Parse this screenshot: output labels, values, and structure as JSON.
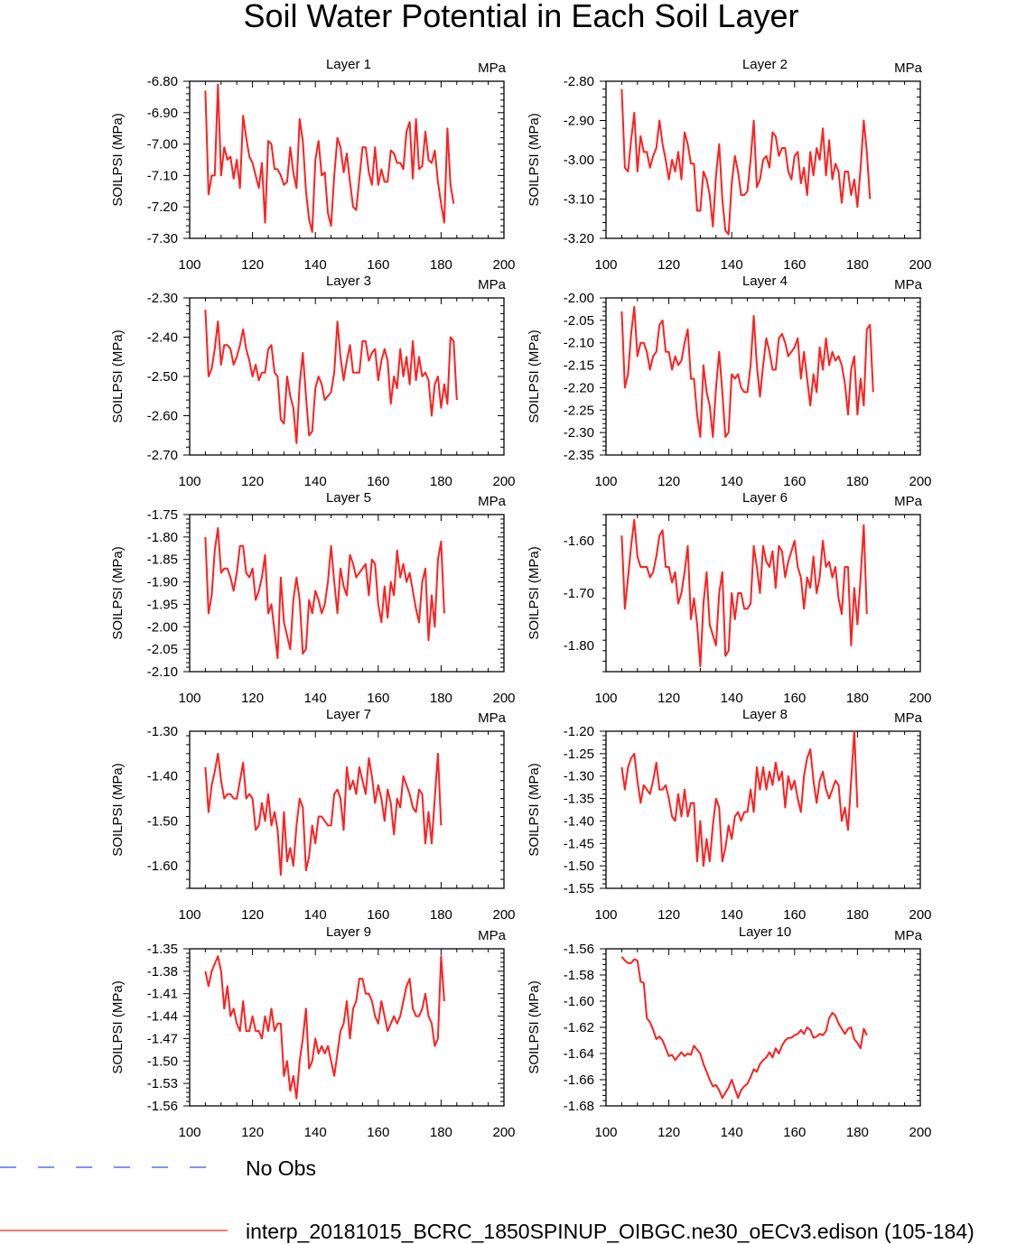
{
  "title": "Soil Water Potential in Each Soil Layer",
  "unit": "MPa",
  "ylabel": "SOILPSI  (MPa)",
  "xticks": [
    "100",
    "120",
    "140",
    "160",
    "180",
    "200"
  ],
  "legend": {
    "obs_label": "No Obs",
    "model_label": "interp_20181015_BCRC_1850SPINUP_OIBGC.ne30_oECv3.edison (105-184)",
    "obs_color": "#3a4cf0",
    "model_color": "#ff2020"
  },
  "chart_data": [
    {
      "type": "line",
      "title": "Layer 1",
      "xlim": [
        100,
        200
      ],
      "ylim": [
        -7.3,
        -6.8
      ],
      "yticks": [
        "-6.80",
        "-6.90",
        "-7.00",
        "-7.10",
        "-7.20",
        "-7.30"
      ],
      "x_start": 105,
      "x_step": 1,
      "series": [
        {
          "values": [
            -6.83,
            -7.16,
            -7.1,
            -7.1,
            -6.81,
            -7.1,
            -7.01,
            -7.05,
            -7.04,
            -7.11,
            -7.05,
            -7.14,
            -6.91,
            -6.98,
            -7.04,
            -7.06,
            -7.1,
            -7.14,
            -7.06,
            -7.25,
            -6.99,
            -7.0,
            -7.08,
            -7.08,
            -7.1,
            -7.13,
            -7.12,
            -7.01,
            -7.09,
            -7.14,
            -6.92,
            -6.99,
            -7.15,
            -7.24,
            -7.28,
            -7.05,
            -6.99,
            -7.1,
            -7.09,
            -7.22,
            -7.26,
            -7.1,
            -6.98,
            -7.01,
            -7.09,
            -7.03,
            -7.12,
            -7.2,
            -7.21,
            -7.11,
            -7.01,
            -7.01,
            -7.09,
            -7.13,
            -7.01,
            -7.13,
            -7.08,
            -7.12,
            -7.12,
            -7.02,
            -7.03,
            -7.06,
            -7.06,
            -7.08,
            -6.96,
            -6.93,
            -7.11,
            -6.92,
            -7.08,
            -7.07,
            -6.96,
            -7.05,
            -7.06,
            -7.02,
            -7.12,
            -7.19,
            -7.25,
            -6.95,
            -7.13,
            -7.19
          ]
        }
      ]
    },
    {
      "type": "line",
      "title": "Layer 2",
      "xlim": [
        100,
        200
      ],
      "ylim": [
        -3.2,
        -2.8
      ],
      "yticks": [
        "-2.80",
        "-2.90",
        "-3.00",
        "-3.10",
        "-3.20"
      ],
      "x_start": 105,
      "x_step": 1,
      "series": [
        {
          "values": [
            -2.82,
            -3.02,
            -3.03,
            -2.95,
            -2.88,
            -3.03,
            -2.94,
            -2.98,
            -2.98,
            -3.02,
            -2.99,
            -2.97,
            -2.9,
            -2.96,
            -3.0,
            -3.05,
            -3.0,
            -3.03,
            -2.98,
            -3.05,
            -2.93,
            -2.96,
            -3.01,
            -3.01,
            -3.13,
            -3.13,
            -3.03,
            -3.05,
            -3.09,
            -3.17,
            -3.04,
            -2.96,
            -3.1,
            -3.18,
            -3.19,
            -3.06,
            -2.99,
            -3.03,
            -3.09,
            -3.09,
            -3.08,
            -3.0,
            -2.9,
            -3.07,
            -3.05,
            -3.0,
            -2.99,
            -3.02,
            -2.93,
            -2.94,
            -2.99,
            -2.97,
            -2.97,
            -3.03,
            -3.05,
            -2.99,
            -2.98,
            -3.06,
            -3.02,
            -3.09,
            -2.98,
            -3.04,
            -2.97,
            -3.0,
            -2.92,
            -3.04,
            -2.95,
            -3.05,
            -3.01,
            -3.03,
            -3.11,
            -3.03,
            -3.03,
            -3.09,
            -3.05,
            -3.12,
            -3.02,
            -2.9,
            -2.98,
            -3.1
          ]
        }
      ]
    },
    {
      "type": "line",
      "title": "Layer 3",
      "xlim": [
        100,
        200
      ],
      "ylim": [
        -2.7,
        -2.3
      ],
      "yticks": [
        "-2.30",
        "-2.40",
        "-2.50",
        "-2.60",
        "-2.70"
      ],
      "x_start": 105,
      "x_step": 1,
      "series": [
        {
          "values": [
            -2.33,
            -2.5,
            -2.48,
            -2.43,
            -2.36,
            -2.47,
            -2.42,
            -2.42,
            -2.43,
            -2.47,
            -2.45,
            -2.42,
            -2.38,
            -2.43,
            -2.46,
            -2.5,
            -2.47,
            -2.51,
            -2.49,
            -2.49,
            -2.43,
            -2.42,
            -2.49,
            -2.5,
            -2.61,
            -2.62,
            -2.5,
            -2.55,
            -2.58,
            -2.67,
            -2.52,
            -2.44,
            -2.55,
            -2.65,
            -2.64,
            -2.53,
            -2.5,
            -2.52,
            -2.56,
            -2.55,
            -2.54,
            -2.49,
            -2.36,
            -2.45,
            -2.51,
            -2.46,
            -2.42,
            -2.49,
            -2.49,
            -2.49,
            -2.41,
            -2.41,
            -2.46,
            -2.44,
            -2.43,
            -2.51,
            -2.46,
            -2.43,
            -2.46,
            -2.57,
            -2.5,
            -2.53,
            -2.43,
            -2.5,
            -2.45,
            -2.52,
            -2.41,
            -2.51,
            -2.45,
            -2.5,
            -2.49,
            -2.51,
            -2.6,
            -2.52,
            -2.5,
            -2.58,
            -2.52,
            -2.57,
            -2.4,
            -2.41,
            -2.56
          ]
        }
      ]
    },
    {
      "type": "line",
      "title": "Layer 4",
      "xlim": [
        100,
        200
      ],
      "ylim": [
        -2.35,
        -2.0
      ],
      "yticks": [
        "-2.00",
        "-2.05",
        "-2.10",
        "-2.15",
        "-2.20",
        "-2.25",
        "-2.30",
        "-2.35"
      ],
      "x_start": 105,
      "x_step": 1,
      "series": [
        {
          "values": [
            -2.03,
            -2.2,
            -2.17,
            -2.08,
            -2.02,
            -2.13,
            -2.1,
            -2.1,
            -2.12,
            -2.16,
            -2.13,
            -2.12,
            -2.06,
            -2.05,
            -2.12,
            -2.12,
            -2.16,
            -2.13,
            -2.15,
            -2.14,
            -2.1,
            -2.07,
            -2.18,
            -2.18,
            -2.26,
            -2.31,
            -2.15,
            -2.21,
            -2.24,
            -2.31,
            -2.2,
            -2.12,
            -2.21,
            -2.31,
            -2.3,
            -2.17,
            -2.18,
            -2.17,
            -2.2,
            -2.21,
            -2.21,
            -2.15,
            -2.04,
            -2.15,
            -2.22,
            -2.15,
            -2.09,
            -2.12,
            -2.16,
            -2.16,
            -2.09,
            -2.08,
            -2.1,
            -2.13,
            -2.12,
            -2.11,
            -2.09,
            -2.18,
            -2.12,
            -2.18,
            -2.24,
            -2.17,
            -2.21,
            -2.11,
            -2.16,
            -2.09,
            -2.15,
            -2.12,
            -2.14,
            -2.13,
            -2.15,
            -2.19,
            -2.26,
            -2.16,
            -2.13,
            -2.26,
            -2.18,
            -2.24,
            -2.07,
            -2.06,
            -2.21
          ]
        }
      ]
    },
    {
      "type": "line",
      "title": "Layer 5",
      "xlim": [
        100,
        200
      ],
      "ylim": [
        -2.1,
        -1.75
      ],
      "yticks": [
        "-1.75",
        "-1.80",
        "-1.85",
        "-1.90",
        "-1.95",
        "-2.00",
        "-2.05",
        "-2.10"
      ],
      "x_start": 105,
      "x_step": 1,
      "series": [
        {
          "values": [
            -1.8,
            -1.97,
            -1.93,
            -1.83,
            -1.78,
            -1.88,
            -1.87,
            -1.87,
            -1.89,
            -1.92,
            -1.88,
            -1.82,
            -1.82,
            -1.88,
            -1.89,
            -1.87,
            -1.94,
            -1.92,
            -1.89,
            -1.84,
            -1.97,
            -1.95,
            -2.01,
            -2.07,
            -1.89,
            -1.99,
            -2.02,
            -2.05,
            -1.94,
            -1.89,
            -1.94,
            -2.06,
            -2.05,
            -1.94,
            -1.97,
            -1.92,
            -1.94,
            -1.97,
            -1.95,
            -1.9,
            -1.82,
            -1.9,
            -1.97,
            -1.87,
            -1.91,
            -1.93,
            -1.84,
            -1.86,
            -1.89,
            -1.88,
            -1.87,
            -1.86,
            -1.93,
            -1.85,
            -1.86,
            -1.95,
            -1.99,
            -1.91,
            -1.98,
            -1.9,
            -1.93,
            -1.83,
            -1.89,
            -1.86,
            -1.9,
            -1.88,
            -1.92,
            -1.96,
            -1.99,
            -1.9,
            -1.87,
            -2.03,
            -1.93,
            -2.0,
            -1.85,
            -1.81,
            -1.97
          ]
        }
      ]
    },
    {
      "type": "line",
      "title": "Layer 6",
      "xlim": [
        100,
        200
      ],
      "ylim": [
        -1.85,
        -1.55
      ],
      "yticks": [
        "-1.60",
        "-1.70",
        "-1.80"
      ],
      "x_start": 105,
      "x_step": 1,
      "series": [
        {
          "values": [
            -1.59,
            -1.73,
            -1.67,
            -1.61,
            -1.56,
            -1.63,
            -1.65,
            -1.65,
            -1.65,
            -1.67,
            -1.66,
            -1.63,
            -1.59,
            -1.58,
            -1.65,
            -1.65,
            -1.68,
            -1.66,
            -1.72,
            -1.7,
            -1.66,
            -1.61,
            -1.75,
            -1.71,
            -1.76,
            -1.84,
            -1.72,
            -1.66,
            -1.76,
            -1.78,
            -1.8,
            -1.7,
            -1.66,
            -1.82,
            -1.81,
            -1.7,
            -1.75,
            -1.7,
            -1.7,
            -1.73,
            -1.73,
            -1.72,
            -1.61,
            -1.65,
            -1.7,
            -1.61,
            -1.64,
            -1.65,
            -1.62,
            -1.69,
            -1.61,
            -1.62,
            -1.67,
            -1.64,
            -1.62,
            -1.6,
            -1.65,
            -1.67,
            -1.73,
            -1.67,
            -1.69,
            -1.63,
            -1.7,
            -1.67,
            -1.6,
            -1.65,
            -1.64,
            -1.67,
            -1.65,
            -1.71,
            -1.74,
            -1.65,
            -1.65,
            -1.8,
            -1.69,
            -1.76,
            -1.67,
            -1.57,
            -1.74
          ]
        }
      ]
    },
    {
      "type": "line",
      "title": "Layer 7",
      "xlim": [
        100,
        200
      ],
      "ylim": [
        -1.65,
        -1.3
      ],
      "yticks": [
        "-1.30",
        "-1.40",
        "-1.50",
        "-1.60"
      ],
      "x_start": 105,
      "x_step": 1,
      "series": [
        {
          "values": [
            -1.38,
            -1.48,
            -1.42,
            -1.39,
            -1.35,
            -1.41,
            -1.45,
            -1.44,
            -1.44,
            -1.45,
            -1.45,
            -1.41,
            -1.37,
            -1.45,
            -1.44,
            -1.45,
            -1.52,
            -1.51,
            -1.46,
            -1.5,
            -1.44,
            -1.51,
            -1.48,
            -1.52,
            -1.62,
            -1.48,
            -1.59,
            -1.56,
            -1.6,
            -1.51,
            -1.45,
            -1.47,
            -1.61,
            -1.58,
            -1.51,
            -1.55,
            -1.49,
            -1.49,
            -1.5,
            -1.51,
            -1.51,
            -1.44,
            -1.43,
            -1.45,
            -1.52,
            -1.38,
            -1.43,
            -1.41,
            -1.44,
            -1.38,
            -1.41,
            -1.44,
            -1.36,
            -1.4,
            -1.46,
            -1.42,
            -1.45,
            -1.5,
            -1.43,
            -1.46,
            -1.53,
            -1.45,
            -1.47,
            -1.4,
            -1.42,
            -1.44,
            -1.47,
            -1.48,
            -1.43,
            -1.44,
            -1.55,
            -1.48,
            -1.55,
            -1.45,
            -1.35,
            -1.51
          ]
        }
      ]
    },
    {
      "type": "line",
      "title": "Layer 8",
      "xlim": [
        100,
        200
      ],
      "ylim": [
        -1.55,
        -1.2
      ],
      "yticks": [
        "-1.20",
        "-1.25",
        "-1.30",
        "-1.35",
        "-1.40",
        "-1.45",
        "-1.50",
        "-1.55"
      ],
      "x_start": 105,
      "x_step": 1,
      "series": [
        {
          "values": [
            -1.28,
            -1.33,
            -1.28,
            -1.26,
            -1.25,
            -1.31,
            -1.36,
            -1.32,
            -1.33,
            -1.34,
            -1.31,
            -1.27,
            -1.33,
            -1.33,
            -1.32,
            -1.35,
            -1.39,
            -1.4,
            -1.34,
            -1.39,
            -1.33,
            -1.39,
            -1.36,
            -1.36,
            -1.49,
            -1.4,
            -1.5,
            -1.44,
            -1.49,
            -1.41,
            -1.35,
            -1.37,
            -1.49,
            -1.46,
            -1.41,
            -1.44,
            -1.39,
            -1.38,
            -1.4,
            -1.38,
            -1.38,
            -1.33,
            -1.38,
            -1.28,
            -1.33,
            -1.28,
            -1.33,
            -1.29,
            -1.32,
            -1.27,
            -1.31,
            -1.29,
            -1.37,
            -1.3,
            -1.33,
            -1.31,
            -1.35,
            -1.38,
            -1.3,
            -1.26,
            -1.24,
            -1.31,
            -1.36,
            -1.31,
            -1.29,
            -1.33,
            -1.35,
            -1.33,
            -1.31,
            -1.32,
            -1.4,
            -1.37,
            -1.42,
            -1.31,
            -1.2,
            -1.37
          ]
        }
      ]
    },
    {
      "type": "line",
      "title": "Layer 9",
      "xlim": [
        100,
        200
      ],
      "ylim": [
        -1.56,
        -1.35
      ],
      "yticks": [
        "-1.35",
        "-1.38",
        "-1.41",
        "-1.44",
        "-1.47",
        "-1.50",
        "-1.53",
        "-1.56"
      ],
      "x_start": 105,
      "x_step": 1,
      "series": [
        {
          "values": [
            -1.38,
            -1.4,
            -1.38,
            -1.37,
            -1.36,
            -1.38,
            -1.43,
            -1.4,
            -1.44,
            -1.43,
            -1.45,
            -1.46,
            -1.42,
            -1.46,
            -1.46,
            -1.44,
            -1.46,
            -1.46,
            -1.47,
            -1.44,
            -1.46,
            -1.43,
            -1.46,
            -1.45,
            -1.45,
            -1.52,
            -1.5,
            -1.54,
            -1.52,
            -1.55,
            -1.5,
            -1.47,
            -1.43,
            -1.51,
            -1.5,
            -1.47,
            -1.49,
            -1.48,
            -1.49,
            -1.48,
            -1.5,
            -1.52,
            -1.49,
            -1.46,
            -1.45,
            -1.42,
            -1.47,
            -1.43,
            -1.42,
            -1.39,
            -1.39,
            -1.41,
            -1.41,
            -1.42,
            -1.44,
            -1.45,
            -1.42,
            -1.44,
            -1.46,
            -1.45,
            -1.44,
            -1.45,
            -1.44,
            -1.42,
            -1.4,
            -1.39,
            -1.43,
            -1.44,
            -1.44,
            -1.43,
            -1.41,
            -1.44,
            -1.45,
            -1.48,
            -1.47,
            -1.36,
            -1.42
          ]
        }
      ]
    },
    {
      "type": "line",
      "title": "Layer 10",
      "xlim": [
        100,
        200
      ],
      "ylim": [
        -1.68,
        -1.56
      ],
      "yticks": [
        "-1.56",
        "-1.58",
        "-1.60",
        "-1.62",
        "-1.64",
        "-1.66",
        "-1.68"
      ],
      "x_start": 105,
      "x_step": 1,
      "series": [
        {
          "values": [
            -1.566,
            -1.569,
            -1.571,
            -1.571,
            -1.568,
            -1.569,
            -1.585,
            -1.586,
            -1.613,
            -1.616,
            -1.622,
            -1.629,
            -1.627,
            -1.63,
            -1.636,
            -1.642,
            -1.641,
            -1.645,
            -1.642,
            -1.639,
            -1.642,
            -1.64,
            -1.641,
            -1.634,
            -1.637,
            -1.64,
            -1.648,
            -1.654,
            -1.66,
            -1.665,
            -1.664,
            -1.668,
            -1.674,
            -1.67,
            -1.666,
            -1.66,
            -1.667,
            -1.674,
            -1.668,
            -1.665,
            -1.663,
            -1.658,
            -1.652,
            -1.654,
            -1.648,
            -1.645,
            -1.643,
            -1.639,
            -1.643,
            -1.636,
            -1.64,
            -1.634,
            -1.63,
            -1.628,
            -1.628,
            -1.626,
            -1.625,
            -1.622,
            -1.625,
            -1.62,
            -1.622,
            -1.628,
            -1.627,
            -1.625,
            -1.626,
            -1.623,
            -1.613,
            -1.609,
            -1.611,
            -1.617,
            -1.621,
            -1.625,
            -1.621,
            -1.62,
            -1.629,
            -1.632,
            -1.636,
            -1.621,
            -1.626
          ]
        }
      ]
    }
  ]
}
